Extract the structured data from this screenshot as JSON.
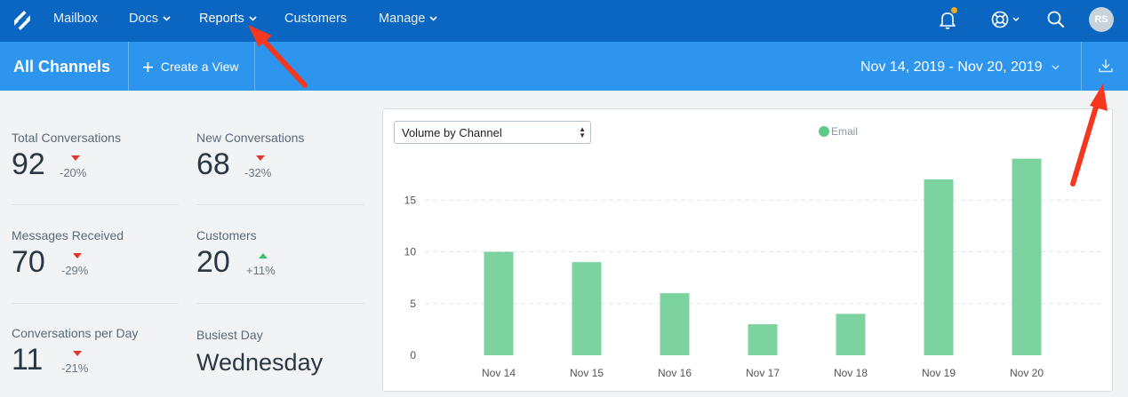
{
  "topnav": {
    "items": [
      {
        "label": "Mailbox",
        "dropdown": false
      },
      {
        "label": "Docs",
        "dropdown": true
      },
      {
        "label": "Reports",
        "dropdown": true,
        "active": true
      },
      {
        "label": "Customers",
        "dropdown": false
      },
      {
        "label": "Manage",
        "dropdown": true
      }
    ],
    "icons": [
      "bell-icon",
      "help-icon",
      "search-icon"
    ],
    "avatar_initials": "RS",
    "notification_color": "#f5a623"
  },
  "subbar": {
    "title": "All Channels",
    "create_view": "Create a View",
    "date_range": "Nov 14, 2019 - Nov 20, 2019"
  },
  "stats": [
    {
      "label": "Total Conversations",
      "value": "92",
      "change": "-20%",
      "trend": "down"
    },
    {
      "label": "New Conversations",
      "value": "68",
      "change": "-32%",
      "trend": "down"
    },
    {
      "label": "Messages Received",
      "value": "70",
      "change": "-29%",
      "trend": "down"
    },
    {
      "label": "Customers",
      "value": "20",
      "change": "+11%",
      "trend": "up"
    },
    {
      "label": "Conversations per Day",
      "value": "11",
      "change": "-21%",
      "trend": "down"
    }
  ],
  "busiest": {
    "label": "Busiest Day",
    "value": "Wednesday"
  },
  "chart_select": {
    "value": "Volume by Channel"
  },
  "chart_data": {
    "type": "bar",
    "categories": [
      "Nov 14",
      "Nov 15",
      "Nov 16",
      "Nov 17",
      "Nov 18",
      "Nov 19",
      "Nov 20"
    ],
    "series": [
      {
        "name": "Email",
        "values": [
          10,
          9,
          6,
          3,
          4,
          17,
          19
        ],
        "color": "#7dd3a0"
      }
    ],
    "yticks": [
      0,
      5,
      10,
      15
    ],
    "ylim": [
      0,
      20
    ],
    "grid": true,
    "legend": "top-center"
  },
  "colors": {
    "nav": "#0b66c2",
    "subbar": "#2d95ee",
    "down": "#e5352b",
    "up": "#3fc076",
    "annotation": "#f4371f"
  }
}
